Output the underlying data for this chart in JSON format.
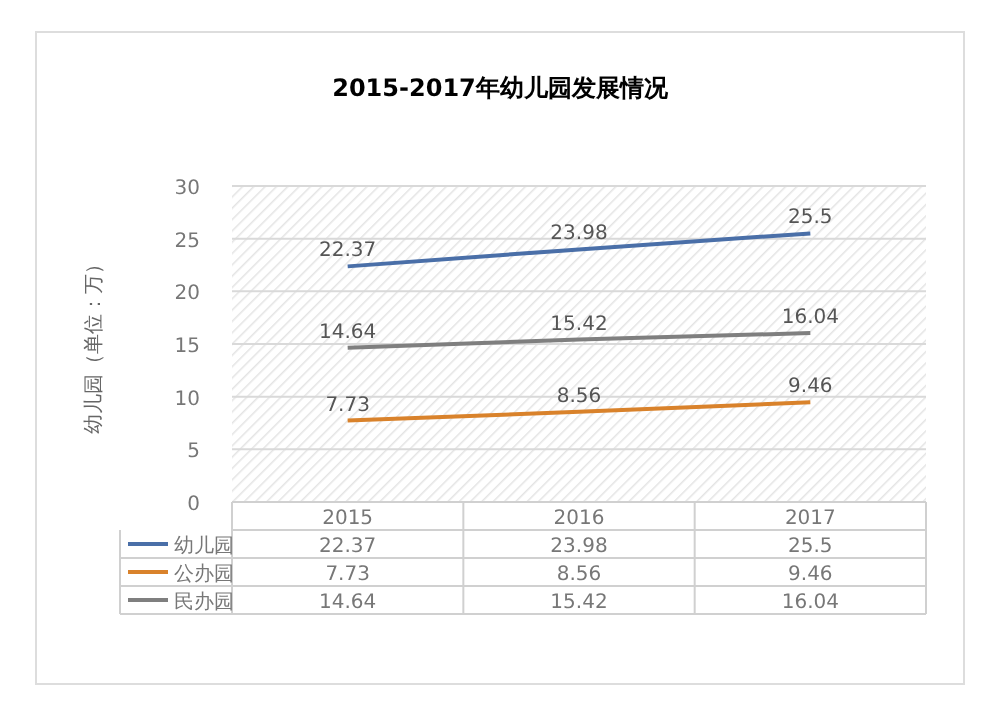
{
  "chart_data": {
    "type": "line",
    "title": "2015-2017年幼儿园发展情况",
    "ylabel": "幼儿园（单位：万）",
    "categories": [
      "2015",
      "2016",
      "2017"
    ],
    "series": [
      {
        "name": "幼儿园",
        "color": "#4a6fa8",
        "values": [
          22.37,
          23.98,
          25.5
        ]
      },
      {
        "name": "公办园",
        "color": "#d9822b",
        "values": [
          7.73,
          8.56,
          9.46
        ]
      },
      {
        "name": "民办园",
        "color": "#7f7f7f",
        "values": [
          14.64,
          15.42,
          16.04
        ]
      }
    ],
    "annotations": [
      "22.37",
      "23.98",
      "25.5",
      "7.73",
      "8.56",
      "9.46",
      "14.64",
      "15.42",
      "16.04"
    ],
    "ylim": [
      0,
      30
    ],
    "yticks": [
      0,
      5,
      10,
      15,
      20,
      25,
      30
    ],
    "grid": "y",
    "legend": "bottom",
    "data_labels": true
  }
}
